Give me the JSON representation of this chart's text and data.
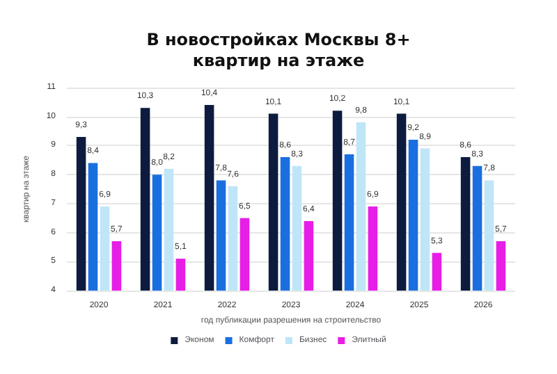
{
  "chart_data": {
    "type": "bar",
    "title": "В новостройках Москвы 8+\nквартир на этаже",
    "xlabel": "год публикации разрешения на строительство",
    "ylabel": "квартир на этаже",
    "categories": [
      "2020",
      "2021",
      "2022",
      "2023",
      "2024",
      "2025",
      "2026"
    ],
    "series": [
      {
        "name": "Эконом",
        "color": "#0d1b3e",
        "values": [
          9.3,
          10.3,
          10.4,
          10.1,
          10.2,
          10.1,
          8.6
        ],
        "value_labels": [
          "9,3",
          "10,3",
          "10,4",
          "10,1",
          "10,2",
          "10,1",
          "8,6"
        ]
      },
      {
        "name": "Комфорт",
        "color": "#1a6fe0",
        "values": [
          8.4,
          8.0,
          7.8,
          8.6,
          8.7,
          9.2,
          8.3
        ],
        "value_labels": [
          "8,4",
          "8,0",
          "7,8",
          "8,6",
          "8,7",
          "9,2",
          "8,3"
        ]
      },
      {
        "name": "Бизнес",
        "color": "#bfe6f7",
        "values": [
          6.9,
          8.2,
          7.6,
          8.3,
          9.8,
          8.9,
          7.8
        ],
        "value_labels": [
          "6,9",
          "8,2",
          "7,6",
          "8,3",
          "9,8",
          "8,9",
          "7,8"
        ]
      },
      {
        "name": "Элитный",
        "color": "#e61ee6",
        "values": [
          5.7,
          5.1,
          6.5,
          6.4,
          6.9,
          5.3,
          5.7
        ],
        "value_labels": [
          "5,7",
          "5,1",
          "6,5",
          "6,4",
          "6,9",
          "5,3",
          "5,7"
        ]
      }
    ],
    "ylim": [
      4,
      11
    ],
    "yticks": [
      4,
      5,
      6,
      7,
      8,
      9,
      10,
      11
    ],
    "grid": "y",
    "legend": "bottom"
  }
}
